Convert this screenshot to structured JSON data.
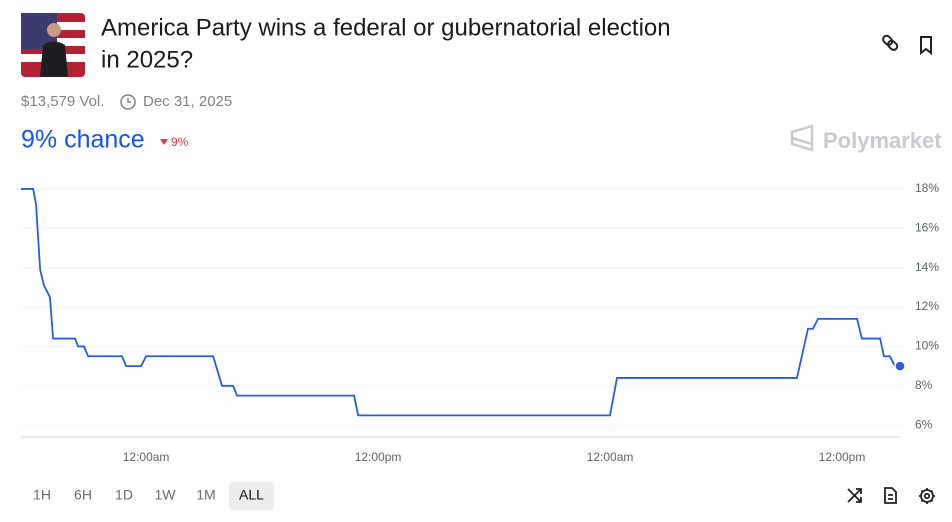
{
  "header": {
    "title_lines": [
      "America Party wins a federal or gubernatorial election",
      "in 2025?"
    ]
  },
  "stats": {
    "volume": "$13,579 Vol.",
    "end_date": "Dec 31, 2025"
  },
  "chance": {
    "label": "9% chance",
    "change": "9%"
  },
  "brand": "Polymarket",
  "time_ranges": [
    "1H",
    "6H",
    "1D",
    "1W",
    "1M",
    "ALL"
  ],
  "selected_range": "ALL",
  "chart_data": {
    "type": "line",
    "x": [
      5.53,
      6.16,
      6.31,
      6.52,
      6.72,
      7.03,
      7.19,
      8.33,
      8.48,
      8.79,
      9.0,
      10.76,
      10.97,
      11.74,
      12.0,
      15.47,
      15.93,
      16.5,
      16.71,
      22.76,
      22.97,
      36.0,
      36.36,
      45.67,
      46.24,
      46.5,
      46.76,
      48.78,
      49.03,
      49.97,
      50.17,
      50.48,
      50.74,
      51.0
    ],
    "series": [
      {
        "color": "#2a5bdf",
        "values": [
          18,
          18,
          17.2,
          13.9,
          13.1,
          12.5,
          10.4,
          10.4,
          10.0,
          10.0,
          9.5,
          9.5,
          9.0,
          9.0,
          9.5,
          9.5,
          8.0,
          8.0,
          7.5,
          7.5,
          6.5,
          6.5,
          8.4,
          8.4,
          10.9,
          10.9,
          11.4,
          11.4,
          10.4,
          10.4,
          9.5,
          9.5,
          9.0,
          9.0
        ]
      }
    ],
    "xlim": [
      5.53,
      51.0
    ],
    "xticks": [
      {
        "value": 12,
        "label": "12:00am"
      },
      {
        "value": 24,
        "label": "12:00pm"
      },
      {
        "value": 36,
        "label": "12:00am"
      },
      {
        "value": 48,
        "label": "12:00pm"
      }
    ],
    "ylim": [
      5.4,
      18.2
    ],
    "yticks": [
      {
        "value": 6,
        "label": "6%"
      },
      {
        "value": 8,
        "label": "8%"
      },
      {
        "value": 10,
        "label": "10%"
      },
      {
        "value": 12,
        "label": "12%"
      },
      {
        "value": 14,
        "label": "14%"
      },
      {
        "value": 16,
        "label": "16%"
      },
      {
        "value": 18,
        "label": "18%"
      }
    ],
    "grid": true
  }
}
